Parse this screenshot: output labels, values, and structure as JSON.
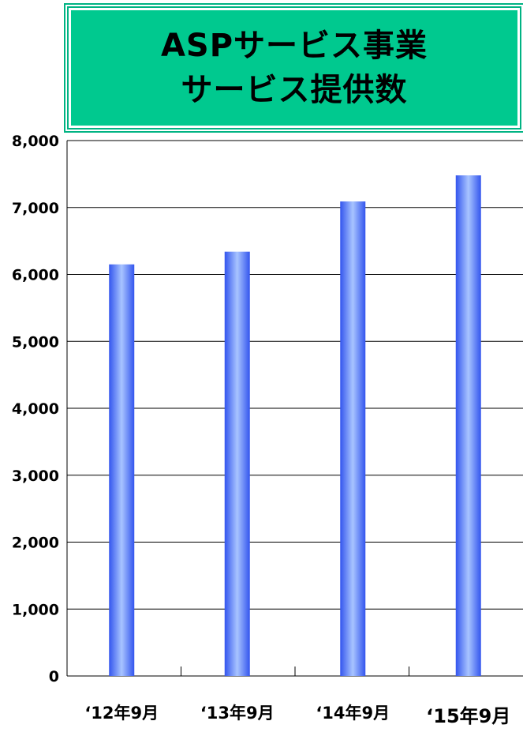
{
  "title_lines": [
    "ASPサービス事業",
    "サービス提供数"
  ],
  "chart_data": {
    "type": "bar",
    "title": "ASPサービス事業 サービス提供数",
    "categories": [
      "‘12年9月",
      "‘13年9月",
      "‘14年9月",
      "‘15年9月"
    ],
    "values": [
      6150,
      6340,
      7090,
      7480
    ],
    "xlabel": "",
    "ylabel": "",
    "ylim": [
      0,
      8000
    ],
    "yticks": [
      "0",
      "1,000",
      "2,000",
      "3,000",
      "4,000",
      "5,000",
      "6,000",
      "7,000",
      "8,000"
    ],
    "grid": true,
    "legend": "none",
    "colors": {
      "bar_dark": "#3355ee",
      "bar_light": "#a8c4ff",
      "title_bg": "#00c98f"
    }
  }
}
